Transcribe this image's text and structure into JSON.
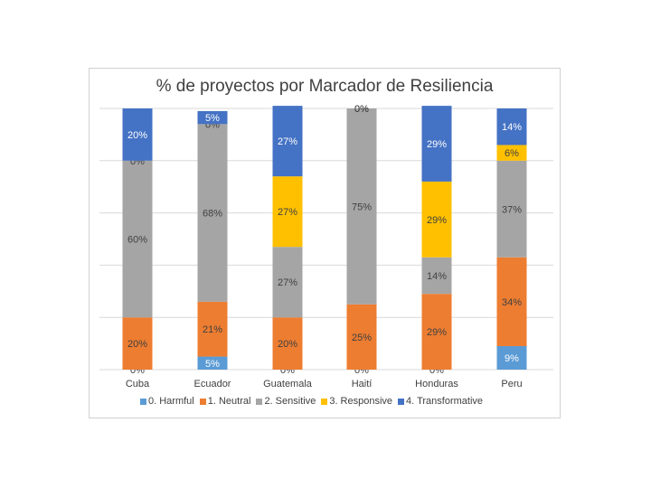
{
  "chart_data": {
    "type": "bar",
    "stacked": true,
    "title": "% de proyectos por Marcador de Resiliencia",
    "categories": [
      "Cuba",
      "Ecuador",
      "Guatemala",
      "Haití",
      "Honduras",
      "Peru"
    ],
    "series": [
      {
        "name": "0. Harmful",
        "color": "#5b9bd5",
        "values": [
          0,
          5,
          0,
          0,
          0,
          9
        ],
        "labels": [
          "0%",
          "5%",
          "0%",
          "0%",
          "0%",
          "9%"
        ]
      },
      {
        "name": "1. Neutral",
        "color": "#ed7d31",
        "values": [
          20,
          21,
          20,
          25,
          29,
          34
        ],
        "labels": [
          "20%",
          "21%",
          "20%",
          "25%",
          "29%",
          "34%"
        ]
      },
      {
        "name": "2. Sensitive",
        "color": "#a5a5a5",
        "values": [
          60,
          68,
          27,
          75,
          14,
          37
        ],
        "labels": [
          "60%",
          "68%",
          "27%",
          "75%",
          "14%",
          "37%"
        ]
      },
      {
        "name": "3. Responsive",
        "color": "#ffc000",
        "values": [
          0,
          0,
          27,
          0,
          29,
          6
        ],
        "labels": [
          "0%",
          "0%",
          "27%",
          "0%",
          "29%",
          "6%"
        ]
      },
      {
        "name": "4. Transformative",
        "color": "#4472c4",
        "values": [
          20,
          5,
          27,
          0,
          29,
          14
        ],
        "labels": [
          "20%",
          "5%",
          "27%",
          "0%",
          "29%",
          "14%"
        ]
      }
    ],
    "ylim": [
      0,
      100
    ],
    "grid": true,
    "legend_position": "bottom"
  }
}
